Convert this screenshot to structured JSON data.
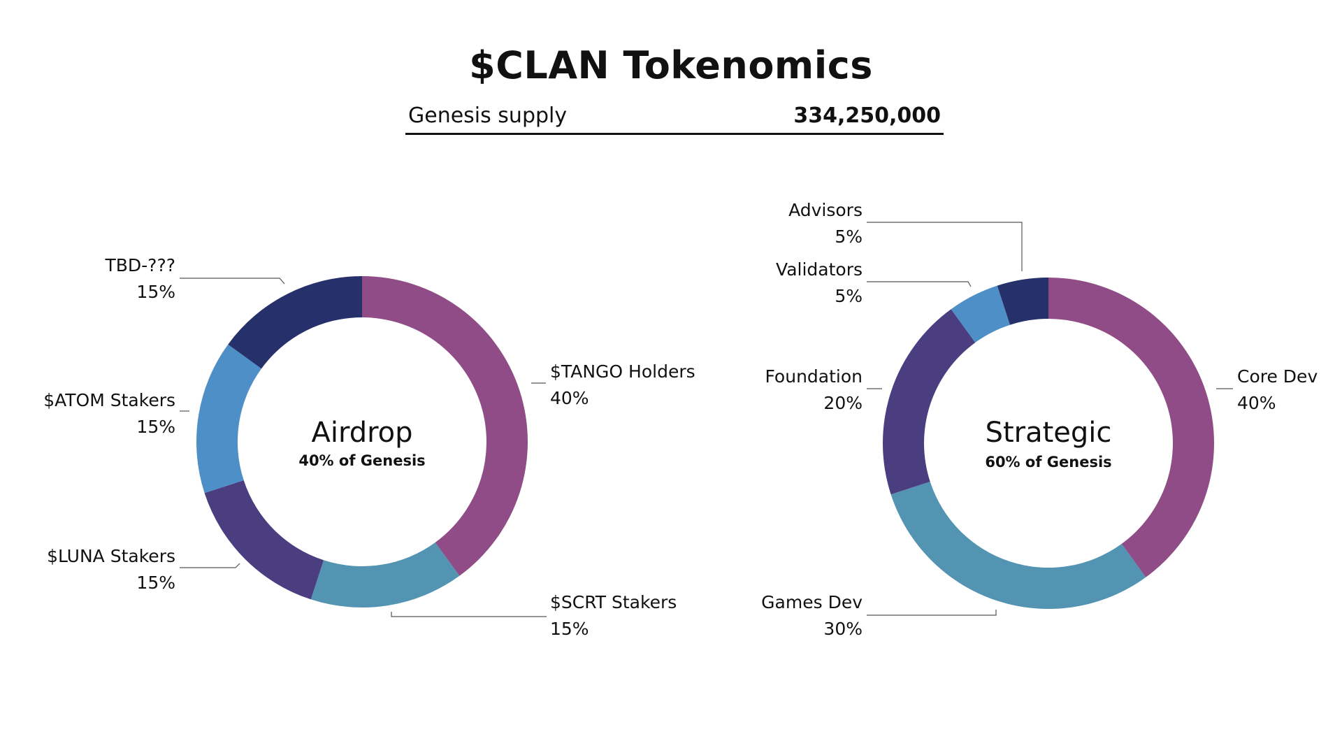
{
  "header": {
    "title": "$CLAN Tokenomics",
    "supply_label": "Genesis supply",
    "supply_value": "334,250,000"
  },
  "chart_data": [
    {
      "type": "pie",
      "title": "Airdrop",
      "subtitle": "40% of Genesis",
      "slices": [
        {
          "label": "$TANGO Holders",
          "value": 40,
          "value_label": "40%",
          "color": "#8F4C86"
        },
        {
          "label": "$SCRT Stakers",
          "value": 15,
          "value_label": "15%",
          "color": "#5294B1"
        },
        {
          "label": "$LUNA Stakers",
          "value": 15,
          "value_label": "15%",
          "color": "#4A3D80"
        },
        {
          "label": "$ATOM Stakers",
          "value": 15,
          "value_label": "15%",
          "color": "#4F8FC8"
        },
        {
          "label": "TBD-???",
          "value": 15,
          "value_label": "15%",
          "color": "#26306A"
        }
      ]
    },
    {
      "type": "pie",
      "title": "Strategic",
      "subtitle": "60% of Genesis",
      "slices": [
        {
          "label": "Core Dev",
          "value": 40,
          "value_label": "40%",
          "color": "#8F4C86"
        },
        {
          "label": "Games Dev",
          "value": 30,
          "value_label": "30%",
          "color": "#5294B1"
        },
        {
          "label": "Foundation",
          "value": 20,
          "value_label": "20%",
          "color": "#4A3D80"
        },
        {
          "label": "Validators",
          "value": 5,
          "value_label": "5%",
          "color": "#4F8FC8"
        },
        {
          "label": "Advisors",
          "value": 5,
          "value_label": "5%",
          "color": "#26306A"
        }
      ]
    }
  ]
}
